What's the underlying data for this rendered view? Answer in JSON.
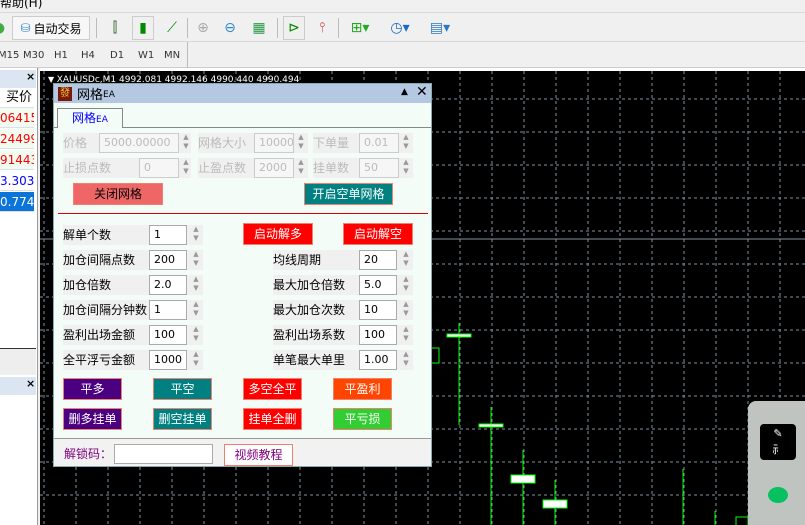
{
  "menubar": {
    "help": "帮助(H)"
  },
  "toolbar": {
    "auto_trade": "自动交易"
  },
  "timeframes": [
    "M15",
    "M30",
    "H1",
    "H4",
    "D1",
    "W1",
    "MN"
  ],
  "market_watch": {
    "header": "买价",
    "prices": [
      "06415",
      "24499",
      "91443",
      "3.303",
      "0.774"
    ],
    "price_colors": [
      "#ff0000",
      "#ff0000",
      "#ff0000",
      "#0000ff",
      "#ffffff"
    ]
  },
  "chart": {
    "header": "XAUUSDc,M1  4992.081 4992.146 4990.440 4990.494",
    "bg": "#000000",
    "grid": "#8090a0",
    "candle_up": "#00ff00"
  },
  "dialog": {
    "title": "网格",
    "title_suffix": "EA",
    "tab": "网格",
    "tab_suffix": "EA",
    "grid_settings": {
      "price_label": "价格",
      "price_value": "5000.00000",
      "grid_size_label": "网格大小",
      "grid_size_value": "100000",
      "lot_label": "下单量",
      "lot_value": "0.01",
      "sl_label": "止损点数",
      "sl_value": "0",
      "tp_label": "止盈点数",
      "tp_value": "2000",
      "orders_label": "挂单数",
      "orders_value": "50"
    },
    "close_grid": "关闭网格",
    "open_short_grid": "开启空单网格",
    "params_left": [
      {
        "label": "解单个数",
        "value": "1"
      },
      {
        "label": "加仓间隔点数",
        "value": "200"
      },
      {
        "label": "加仓倍数",
        "value": "2.0"
      },
      {
        "label": "加仓间隔分钟数",
        "value": "1"
      },
      {
        "label": "盈利出场金额",
        "value": "100"
      },
      {
        "label": "全平浮亏金额",
        "value": "1000"
      }
    ],
    "params_right": [
      {
        "label": "均线周期",
        "value": "20"
      },
      {
        "label": "最大加仓倍数",
        "value": "5.0"
      },
      {
        "label": "最大加仓次数",
        "value": "10"
      },
      {
        "label": "盈利出场系数",
        "value": "100"
      },
      {
        "label": "单笔最大单里",
        "value": "1.00"
      }
    ],
    "start_unlock_long": "启动解多",
    "start_unlock_short": "启动解空",
    "buttons": [
      {
        "label": "平多",
        "color": "#4b0082"
      },
      {
        "label": "平空",
        "color": "#008080"
      },
      {
        "label": "多空全平",
        "color": "#ff0000"
      },
      {
        "label": "平盈利",
        "color": "#ff4500"
      },
      {
        "label": "删多挂单",
        "color": "#4b0082"
      },
      {
        "label": "删空挂单",
        "color": "#008080"
      },
      {
        "label": "挂单全删",
        "color": "#ff0000"
      },
      {
        "label": "平亏损",
        "color": "#32cd32"
      }
    ],
    "unlock_code_label": "解锁码：",
    "unlock_code_value": "",
    "video_tutorial": "视频教程"
  }
}
